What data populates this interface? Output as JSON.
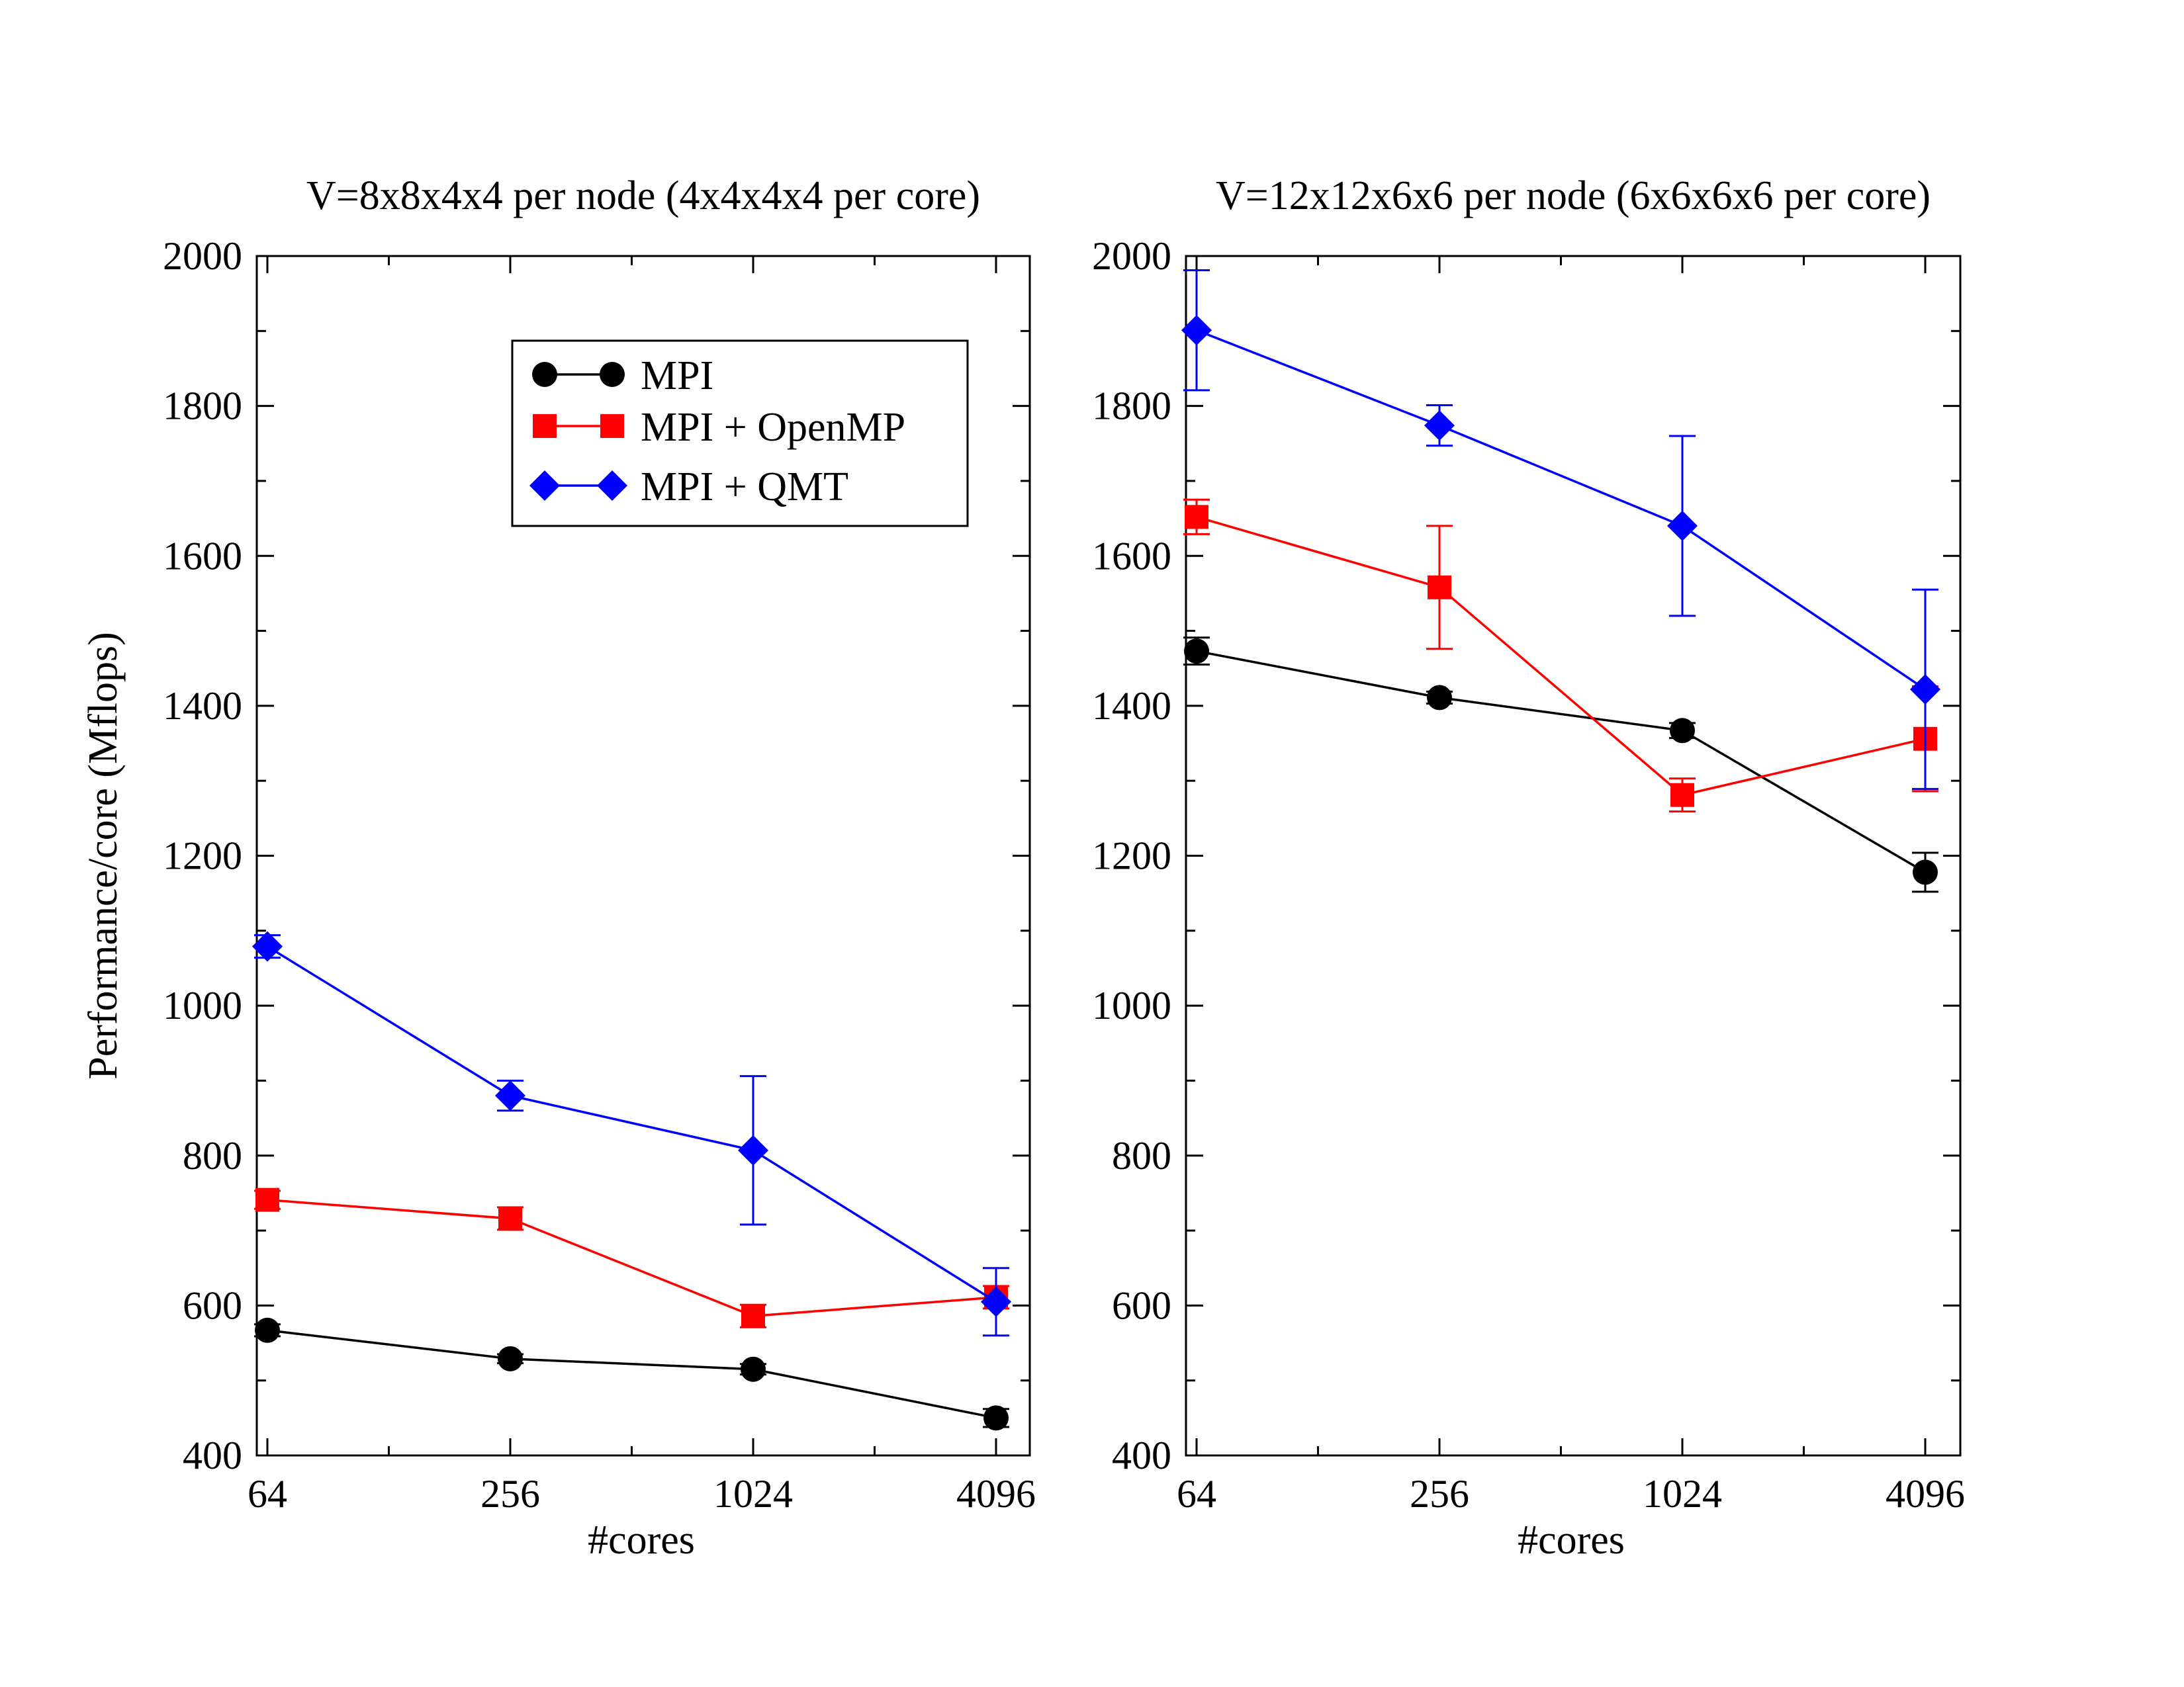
{
  "chart_data": [
    {
      "type": "line",
      "title": "V=8x8x4x4 per node (4x4x4x4 per core)",
      "xlabel": "#cores",
      "ylabel": "Performance/core (Mflops)",
      "xscale": "log2",
      "xlim": [
        64,
        4096
      ],
      "ylim": [
        400,
        2000
      ],
      "categories": [
        "64",
        "256",
        "1024",
        "4096"
      ],
      "y_ticks": [
        "400",
        "600",
        "800",
        "1000",
        "1200",
        "1400",
        "1600",
        "1800",
        "2000"
      ],
      "legend": "top-right",
      "series": [
        {
          "name": "MPI",
          "color": "#000000",
          "marker": "circle",
          "x": [
            64,
            256,
            1024,
            4096
          ],
          "values": [
            567,
            529,
            515,
            450
          ],
          "errors": [
            8,
            6,
            7,
            12
          ]
        },
        {
          "name": "MPI + OpenMP",
          "color": "#ff0000",
          "marker": "square",
          "x": [
            64,
            256,
            1024,
            4096
          ],
          "values": [
            741,
            716,
            586,
            611
          ],
          "errors": [
            12,
            15,
            15,
            15
          ]
        },
        {
          "name": "MPI + QMT",
          "color": "#0000ff",
          "marker": "diamond",
          "x": [
            64,
            256,
            1024,
            4096
          ],
          "values": [
            1079,
            880,
            807,
            605
          ],
          "errors": [
            15,
            20,
            99,
            45
          ]
        }
      ]
    },
    {
      "type": "line",
      "title": "V=12x12x6x6 per node (6x6x6x6 per core)",
      "xlabel": "#cores",
      "ylabel": "",
      "xscale": "log2",
      "xlim": [
        64,
        4096
      ],
      "ylim": [
        400,
        2000
      ],
      "categories": [
        "64",
        "256",
        "1024",
        "4096"
      ],
      "y_ticks": [
        "400",
        "600",
        "800",
        "1000",
        "1200",
        "1400",
        "1600",
        "1800",
        "2000"
      ],
      "series": [
        {
          "name": "MPI",
          "color": "#000000",
          "marker": "circle",
          "x": [
            64,
            256,
            1024,
            4096
          ],
          "values": [
            1473,
            1411,
            1367,
            1178
          ],
          "errors": [
            18,
            8,
            10,
            26
          ]
        },
        {
          "name": "MPI + OpenMP",
          "color": "#ff0000",
          "marker": "square",
          "x": [
            64,
            256,
            1024,
            4096
          ],
          "values": [
            1652,
            1558,
            1281,
            1356
          ],
          "errors": [
            23,
            82,
            22,
            70
          ]
        },
        {
          "name": "MPI + QMT",
          "color": "#0000ff",
          "marker": "diamond",
          "x": [
            64,
            256,
            1024,
            4096
          ],
          "values": [
            1901,
            1774,
            1640,
            1422
          ],
          "errors": [
            80,
            27,
            120,
            133
          ]
        }
      ]
    }
  ]
}
